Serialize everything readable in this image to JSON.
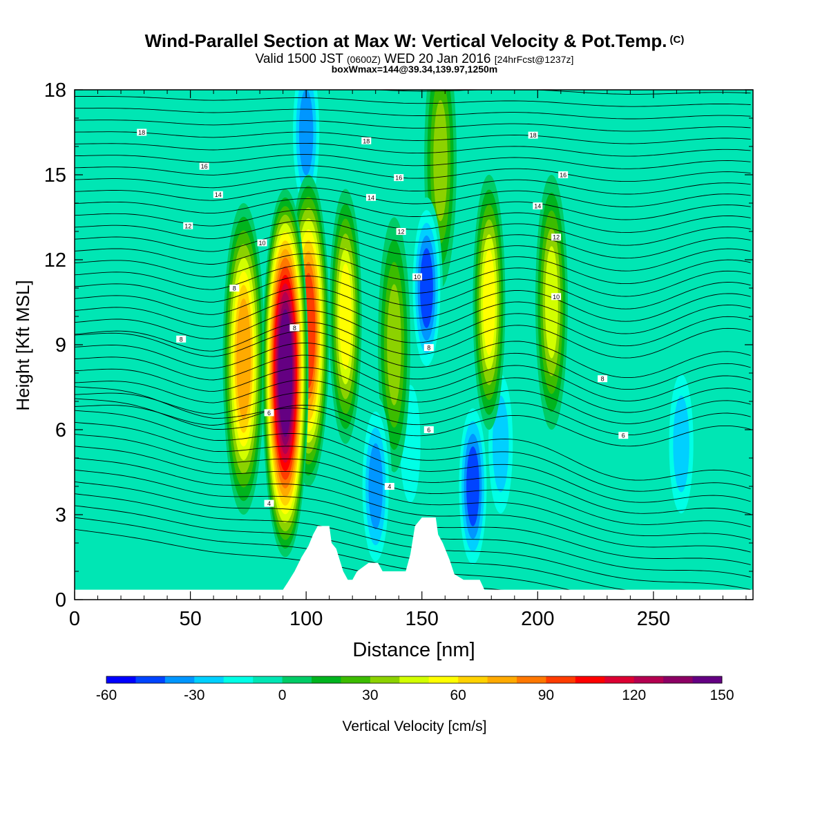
{
  "title": {
    "main": "Wind-Parallel Section at Max W: Vertical Velocity & Pot.Temp.",
    "copyright": "(C)",
    "valid_prefix": "Valid 1500 JST",
    "valid_utc": "(0600Z)",
    "valid_date": "WED 20 Jan 2016",
    "forecast": "[24hrFcst@1237z]",
    "boxwmax": "boxWmax=144@39.34,139.97,1250m"
  },
  "chart_data": {
    "type": "heatmap",
    "title": "Wind-Parallel Section at Max W: Vertical Velocity & Pot.Temp.",
    "xlabel": "Distance [nm]",
    "ylabel": "Height [Kft MSL]",
    "xlim": [
      0,
      293
    ],
    "ylim": [
      0,
      18
    ],
    "x_ticks": [
      0,
      50,
      100,
      150,
      200,
      250
    ],
    "y_ticks": [
      0,
      3,
      6,
      9,
      12,
      15,
      18
    ],
    "colorbar": {
      "label": "Vertical Velocity [cm/s]",
      "min": -60,
      "step": 10,
      "tick_values": [
        -60,
        -30,
        0,
        30,
        60,
        90,
        120,
        150
      ],
      "colors": [
        "#0000ff",
        "#0044ff",
        "#0096ff",
        "#00d0ff",
        "#00ffe6",
        "#00e6b4",
        "#00cc66",
        "#00b41e",
        "#3cbc00",
        "#8cd200",
        "#d2ff00",
        "#ffff00",
        "#ffd200",
        "#ffaa00",
        "#ff7800",
        "#ff3c00",
        "#ff0000",
        "#dc0032",
        "#b40050",
        "#8c0064",
        "#640082"
      ]
    },
    "vertical_velocity_cells": [
      {
        "x": 73,
        "z": 8.5,
        "value": 75
      },
      {
        "x": 91,
        "z": 8.0,
        "value": 144
      },
      {
        "x": 101,
        "z": 9.5,
        "value": 95
      },
      {
        "x": 117,
        "z": 10.0,
        "value": 55
      },
      {
        "x": 138,
        "z": 9.0,
        "value": 35
      },
      {
        "x": 158,
        "z": 15.5,
        "value": 40
      },
      {
        "x": 179,
        "z": 10.5,
        "value": 55
      },
      {
        "x": 206,
        "z": 10.5,
        "value": 45
      },
      {
        "x": 100,
        "z": 16.5,
        "value": -40
      },
      {
        "x": 152,
        "z": 11.0,
        "value": -45
      },
      {
        "x": 130,
        "z": 4.0,
        "value": -40
      },
      {
        "x": 172,
        "z": 4.0,
        "value": -45
      },
      {
        "x": 184,
        "z": 5.5,
        "value": -25
      },
      {
        "x": 262,
        "z": 5.5,
        "value": -30
      },
      {
        "x": 145,
        "z": 5.5,
        "value": -20
      },
      {
        "x": 200,
        "z": 8.0,
        "value": -10
      }
    ],
    "potential_temperature_contours": [
      {
        "theta": 4,
        "labels": [
          {
            "x": 84,
            "z": 3.4
          },
          {
            "x": 136,
            "z": 4.0
          }
        ]
      },
      {
        "theta": 6,
        "labels": [
          {
            "x": 84,
            "z": 6.6
          },
          {
            "x": 153,
            "z": 6.0
          },
          {
            "x": 237,
            "z": 5.8
          }
        ]
      },
      {
        "theta": 8,
        "labels": [
          {
            "x": 46,
            "z": 9.2
          },
          {
            "x": 95,
            "z": 9.6
          },
          {
            "x": 153,
            "z": 8.9
          },
          {
            "x": 228,
            "z": 7.8
          }
        ]
      },
      {
        "theta": 8,
        "labels": [
          {
            "x": 69,
            "z": 11.0
          }
        ]
      },
      {
        "theta": 10,
        "labels": [
          {
            "x": 81,
            "z": 12.6
          },
          {
            "x": 148,
            "z": 11.4
          },
          {
            "x": 208,
            "z": 10.7
          }
        ]
      },
      {
        "theta": 12,
        "labels": [
          {
            "x": 49,
            "z": 13.2
          },
          {
            "x": 141,
            "z": 13.0
          },
          {
            "x": 208,
            "z": 12.8
          }
        ]
      },
      {
        "theta": 14,
        "labels": [
          {
            "x": 62,
            "z": 14.3
          },
          {
            "x": 128,
            "z": 14.2
          },
          {
            "x": 200,
            "z": 13.9
          }
        ]
      },
      {
        "theta": 16,
        "labels": [
          {
            "x": 56,
            "z": 15.3
          },
          {
            "x": 140,
            "z": 14.9
          },
          {
            "x": 211,
            "z": 15.0
          }
        ]
      },
      {
        "theta": 18,
        "labels": [
          {
            "x": 29,
            "z": 16.5
          },
          {
            "x": 126,
            "z": 16.2
          },
          {
            "x": 198,
            "z": 16.4
          }
        ]
      }
    ],
    "terrain": [
      [
        0,
        0.35
      ],
      [
        90,
        0.35
      ],
      [
        92,
        0.6
      ],
      [
        95,
        1.0
      ],
      [
        98,
        1.5
      ],
      [
        101,
        1.9
      ],
      [
        103,
        2.3
      ],
      [
        105,
        2.6
      ],
      [
        110,
        2.6
      ],
      [
        111,
        2.0
      ],
      [
        113,
        1.8
      ],
      [
        116,
        1.0
      ],
      [
        118,
        0.7
      ],
      [
        120,
        0.7
      ],
      [
        122,
        1.0
      ],
      [
        127,
        1.3
      ],
      [
        131,
        1.3
      ],
      [
        133,
        1.0
      ],
      [
        143,
        1.0
      ],
      [
        145,
        1.6
      ],
      [
        147,
        2.6
      ],
      [
        150,
        2.9
      ],
      [
        156,
        2.9
      ],
      [
        157,
        2.3
      ],
      [
        159,
        2.0
      ],
      [
        162,
        1.4
      ],
      [
        164,
        0.9
      ],
      [
        168,
        0.7
      ],
      [
        175,
        0.7
      ],
      [
        177,
        0.35
      ],
      [
        293,
        0.35
      ]
    ]
  }
}
